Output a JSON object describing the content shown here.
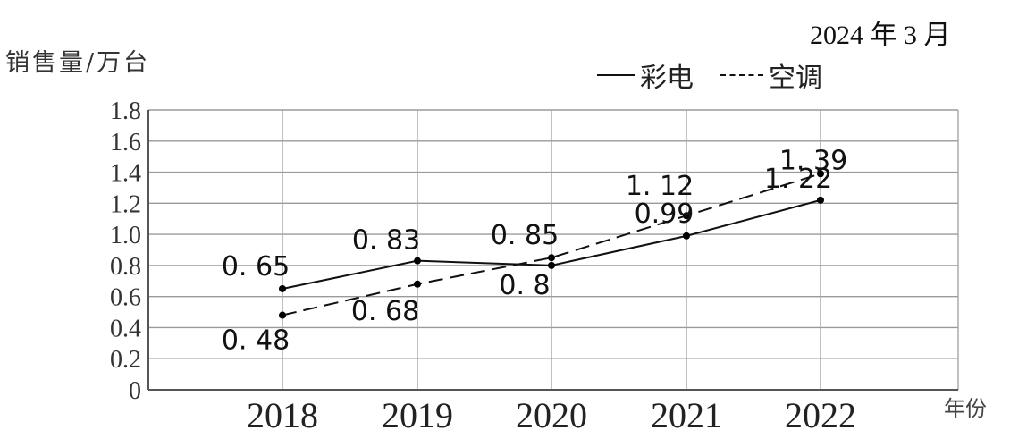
{
  "note": "2024 年 3 月",
  "chart_data": {
    "type": "line",
    "title": "",
    "xlabel": "年份",
    "ylabel": "销售量/万台",
    "categories": [
      "2018",
      "2019",
      "2020",
      "2021",
      "2022"
    ],
    "ylim": [
      0,
      1.8
    ],
    "yticks": [
      "0",
      "0.2",
      "0.4",
      "0.6",
      "0.8",
      "1.0",
      "1.2",
      "1.4",
      "1.6",
      "1.8"
    ],
    "grid": true,
    "legend_position": "top-right",
    "series": [
      {
        "name": "彩电",
        "style": "solid",
        "color": "#111111",
        "values": [
          0.65,
          0.83,
          0.8,
          0.99,
          1.22
        ],
        "labels": [
          "0. 65",
          "0. 83",
          "0. 8",
          "0.99",
          "1. 22"
        ]
      },
      {
        "name": "空调",
        "style": "dashed",
        "color": "#111111",
        "values": [
          0.48,
          0.68,
          0.85,
          1.12,
          1.39
        ],
        "labels": [
          "0. 48",
          "0. 68",
          "0. 85",
          "1. 12",
          "1. 39"
        ]
      }
    ]
  }
}
